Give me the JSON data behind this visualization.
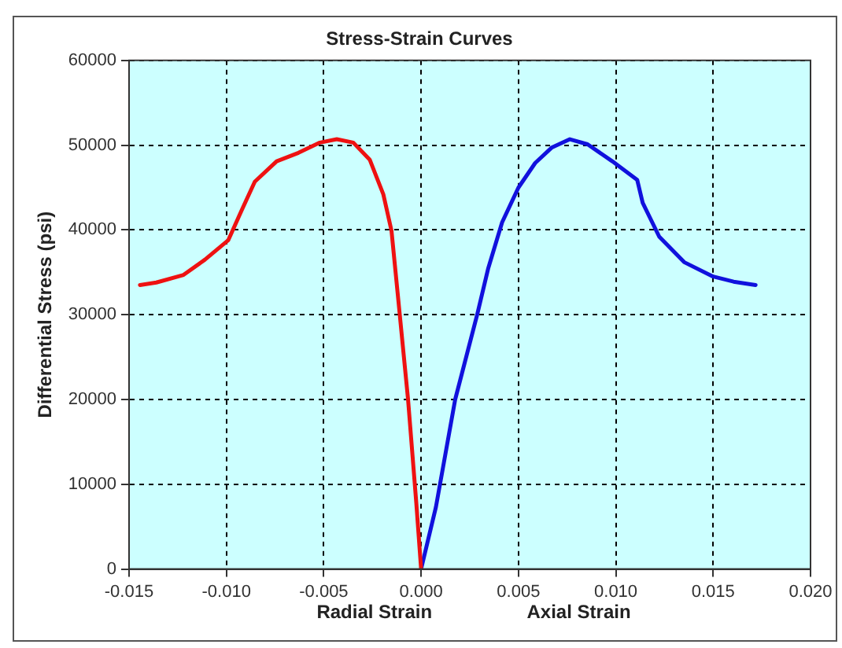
{
  "chart_data": {
    "type": "line",
    "title": "Stress-Strain Curves",
    "ylabel": "Differential Stress (psi)",
    "annotations": [
      "Radial Strain",
      "Axial Strain"
    ],
    "series": [
      {
        "color": "#ee1111",
        "x": [
          -0.01444,
          -0.0136,
          -0.0122,
          -0.0111,
          -0.0099,
          -0.00924,
          -0.00854,
          -0.00742,
          -0.0063,
          -0.0052,
          -0.00433,
          -0.00348,
          -0.00264,
          -0.00194,
          -0.00152,
          -0.0011,
          -0.00067,
          -0.00025,
          0
        ],
        "values": [
          33500,
          33800,
          34700,
          36500,
          38800,
          42200,
          45700,
          48100,
          49100,
          50300,
          50700,
          50300,
          48300,
          44200,
          39900,
          30100,
          20000,
          7900,
          0
        ]
      },
      {
        "color": "#1111dd",
        "x": [
          0,
          0.00076,
          0.00175,
          0.00289,
          0.00345,
          0.00416,
          0.005,
          0.00586,
          0.0067,
          0.00764,
          0.00855,
          0.00982,
          0.0111,
          0.01138,
          0.01223,
          0.01351,
          0.015,
          0.01605,
          0.01718
        ],
        "values": [
          0,
          7300,
          20000,
          30100,
          35500,
          40900,
          45000,
          47900,
          49700,
          50700,
          50100,
          48100,
          45900,
          43200,
          39200,
          36200,
          34500,
          33900,
          33500
        ]
      }
    ],
    "xlim": [
      -0.015,
      0.02
    ],
    "xticks": [
      {
        "value": -0.015,
        "label": "-0.015"
      },
      {
        "value": -0.01,
        "label": "-0.010"
      },
      {
        "value": -0.005,
        "label": "-0.005"
      },
      {
        "value": 0,
        "label": "0.000"
      },
      {
        "value": 0.005,
        "label": "0.005"
      },
      {
        "value": 0.01,
        "label": "0.010"
      },
      {
        "value": 0.015,
        "label": "0.015"
      },
      {
        "value": 0.02,
        "label": "0.020"
      }
    ],
    "ylim": [
      0,
      60000
    ],
    "yticks": [
      0,
      10000,
      20000,
      30000,
      40000,
      50000,
      60000
    ],
    "grid": true,
    "legend": false,
    "marker": "none",
    "line_style": "solid"
  }
}
